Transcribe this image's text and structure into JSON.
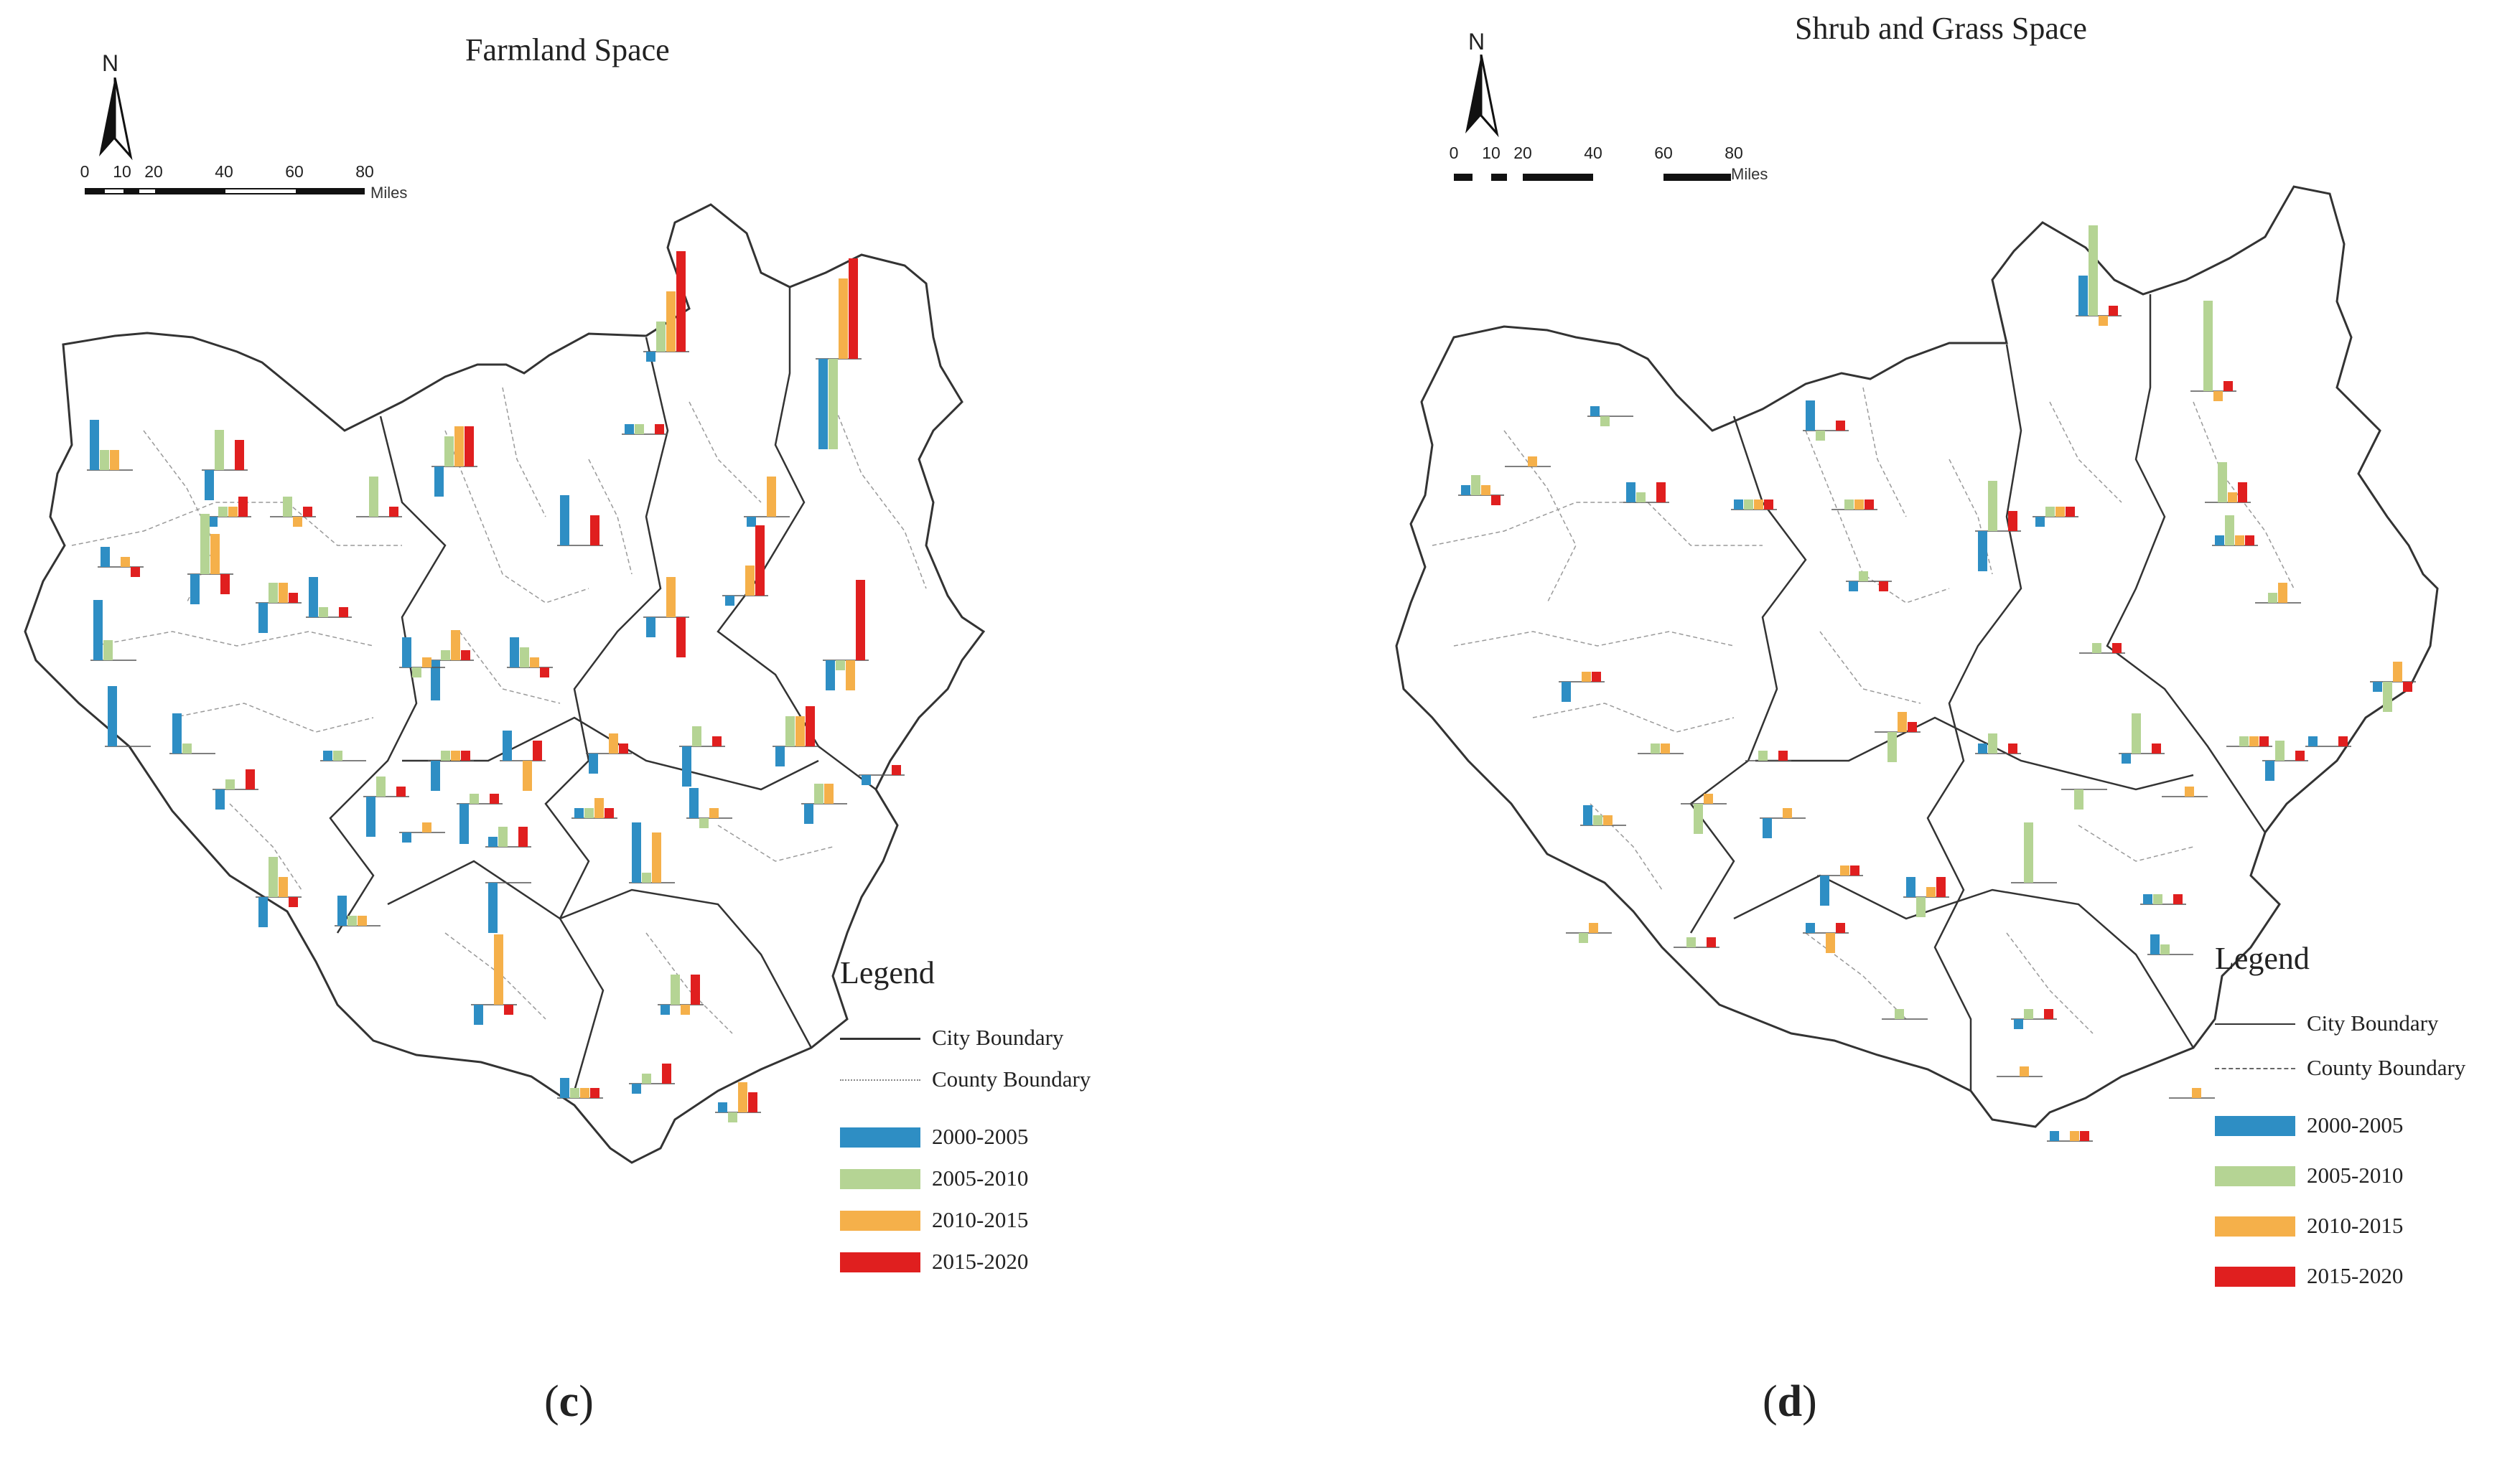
{
  "colors": {
    "period_2000_2005": "#2e8ec4",
    "period_2005_2010": "#b5d494",
    "period_2010_2015": "#f5b04a",
    "period_2015_2020": "#e01f1f",
    "boundary": "#333333",
    "county_boundary": "#9a9a9a"
  },
  "scale": {
    "ticks": [
      "0",
      "10",
      "20",
      "40",
      "60",
      "80"
    ],
    "unit": "Miles"
  },
  "north_label": "N",
  "legend": {
    "title": "Legend",
    "city_boundary": "City Boundary",
    "county_boundary": "County Boundary",
    "periods": [
      "2000-2005",
      "2005-2010",
      "2010-2015",
      "2015-2020"
    ]
  },
  "panels": [
    {
      "id": "c",
      "title": "Farmland Space",
      "label_paren_open": "(",
      "label_letter": "c",
      "label_paren_close": ")"
    },
    {
      "id": "d",
      "title": "Shrub and Grass Space",
      "label_paren_open": "(",
      "label_letter": "d",
      "label_paren_close": ")"
    }
  ],
  "chart_data": [
    {
      "type": "bar",
      "title": "Farmland Space",
      "series_names": [
        "2000-2005",
        "2005-2010",
        "2010-2015",
        "2015-2020"
      ],
      "note": "Small per-county bar groups; values are relative bar heights (positive up, negative down), unitless as shown",
      "counties": [
        [
          -1,
          3,
          6,
          10
        ],
        [
          -9,
          -9,
          8,
          10
        ],
        [
          1,
          1,
          0,
          1
        ],
        [
          5,
          2,
          2,
          0
        ],
        [
          -3,
          4,
          0,
          3
        ],
        [
          -3,
          3,
          4,
          4
        ],
        [
          -1,
          1,
          1,
          2
        ],
        [
          0,
          2,
          -1,
          1
        ],
        [
          0,
          4,
          0,
          1
        ],
        [
          -1,
          0,
          4,
          0
        ],
        [
          5,
          0,
          0,
          3
        ],
        [
          2,
          0,
          1,
          -1
        ],
        [
          -3,
          6,
          4,
          -2
        ],
        [
          -1,
          0,
          3,
          7
        ],
        [
          -3,
          2,
          2,
          1
        ],
        [
          4,
          1,
          0,
          1
        ],
        [
          -2,
          0,
          4,
          -4
        ],
        [
          6,
          2,
          0,
          0
        ],
        [
          -4,
          1,
          3,
          1
        ],
        [
          -3,
          -1,
          -3,
          8
        ],
        [
          3,
          -1,
          1,
          0
        ],
        [
          3,
          2,
          1,
          -1
        ],
        [
          6,
          0,
          0,
          0
        ],
        [
          4,
          1,
          0,
          0
        ],
        [
          -2,
          0,
          2,
          1
        ],
        [
          -4,
          2,
          0,
          1
        ],
        [
          -2,
          3,
          3,
          4
        ],
        [
          1,
          1,
          0,
          0
        ],
        [
          -3,
          1,
          1,
          1
        ],
        [
          3,
          0,
          -3,
          2
        ],
        [
          -1,
          0,
          0,
          1
        ],
        [
          -2,
          1,
          0,
          2
        ],
        [
          -4,
          2,
          0,
          1
        ],
        [
          -4,
          1,
          0,
          1
        ],
        [
          1,
          1,
          2,
          1
        ],
        [
          3,
          -1,
          1,
          0
        ],
        [
          -2,
          2,
          2,
          0
        ],
        [
          -1,
          0,
          1,
          0
        ],
        [
          1,
          2,
          0,
          2
        ],
        [
          -3,
          4,
          2,
          -1
        ],
        [
          6,
          1,
          5,
          0
        ],
        [
          3,
          1,
          1,
          0
        ],
        [
          -5,
          0,
          0,
          0
        ],
        [
          -2,
          0,
          7,
          -1
        ],
        [
          -1,
          3,
          -1,
          3
        ],
        [
          2,
          1,
          1,
          1
        ],
        [
          1,
          -1,
          3,
          2
        ],
        [
          -1,
          1,
          0,
          2
        ]
      ]
    },
    {
      "type": "bar",
      "title": "Shrub and Grass Space",
      "series_names": [
        "2000-2005",
        "2005-2010",
        "2010-2015",
        "2015-2020"
      ],
      "note": "Small per-county bar groups; values are relative bar heights (positive up, negative down), unitless as shown",
      "counties": [
        [
          4,
          9,
          -1,
          1
        ],
        [
          0,
          9,
          -1,
          1
        ],
        [
          1,
          -1,
          0,
          0
        ],
        [
          1,
          2,
          1,
          -1
        ],
        [
          2,
          1,
          0,
          2
        ],
        [
          0,
          1,
          1,
          1
        ],
        [
          1,
          1,
          1,
          1
        ],
        [
          0,
          0,
          1,
          0
        ],
        [
          3,
          -1,
          0,
          1
        ],
        [
          -2,
          0,
          1,
          1
        ],
        [
          -4,
          5,
          0,
          2
        ],
        [
          0,
          4,
          1,
          2
        ],
        [
          -1,
          1,
          1,
          1
        ],
        [
          0,
          1,
          0,
          1
        ],
        [
          1,
          3,
          1,
          1
        ],
        [
          -1,
          1,
          0,
          -1
        ],
        [
          0,
          1,
          2,
          0
        ],
        [
          -1,
          -3,
          2,
          -1
        ],
        [
          1,
          0,
          0,
          1
        ],
        [
          0,
          1,
          1,
          1
        ],
        [
          -1,
          4,
          0,
          1
        ],
        [
          0,
          1,
          1,
          0
        ],
        [
          0,
          1,
          0,
          1
        ],
        [
          0,
          -3,
          2,
          1
        ],
        [
          1,
          2,
          0,
          1
        ],
        [
          0,
          -2,
          0,
          0
        ],
        [
          0,
          0,
          1,
          0
        ],
        [
          2,
          1,
          1,
          0
        ],
        [
          0,
          -3,
          1,
          0
        ],
        [
          -2,
          0,
          1,
          0
        ],
        [
          -3,
          0,
          1,
          1
        ],
        [
          2,
          -2,
          1,
          2
        ],
        [
          0,
          6,
          0,
          0
        ],
        [
          1,
          1,
          0,
          1
        ],
        [
          -2,
          2,
          0,
          1
        ],
        [
          0,
          -1,
          1,
          0
        ],
        [
          0,
          1,
          0,
          1
        ],
        [
          1,
          0,
          -2,
          1
        ],
        [
          2,
          1,
          0,
          0
        ],
        [
          -1,
          1,
          0,
          1
        ],
        [
          0,
          1,
          0,
          0
        ],
        [
          0,
          0,
          1,
          0
        ],
        [
          1,
          0,
          1,
          1
        ],
        [
          0,
          0,
          1,
          0
        ]
      ]
    }
  ]
}
